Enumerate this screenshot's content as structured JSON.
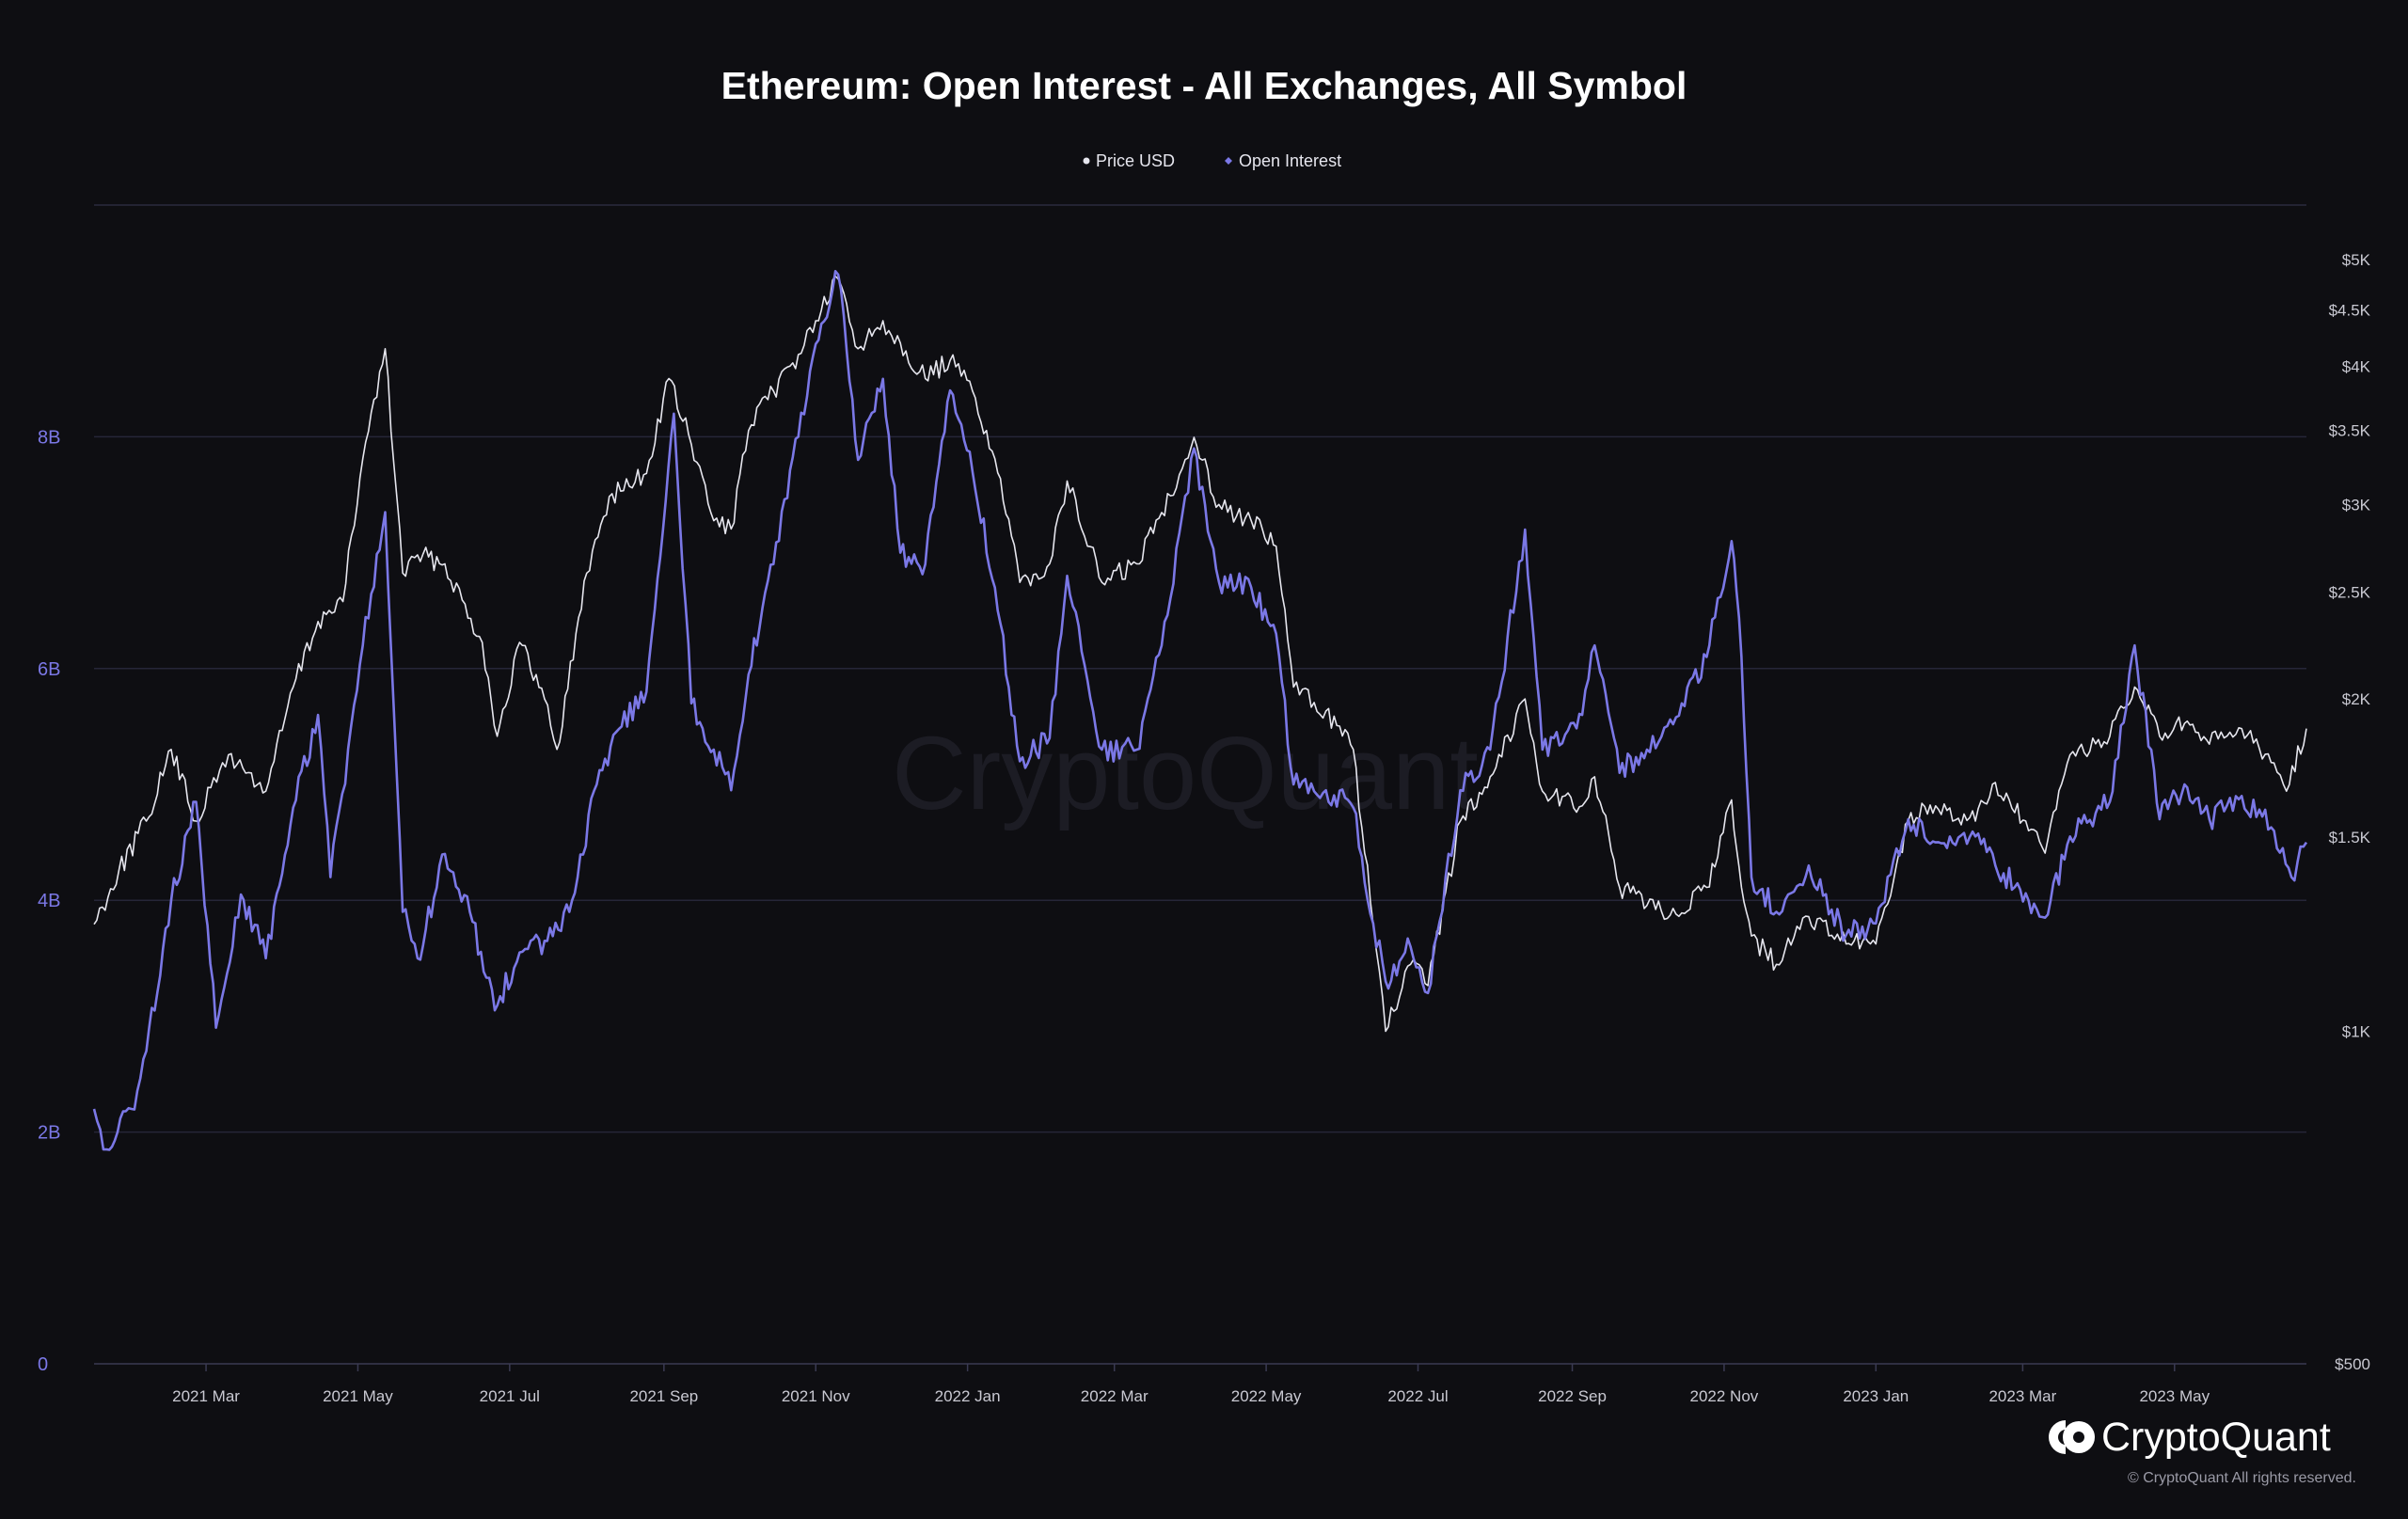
{
  "chart_data": {
    "type": "line",
    "title": "Ethereum: Open Interest - All Exchanges, All Symbol",
    "legend": [
      {
        "name": "Price USD",
        "color": "#e6e6ee"
      },
      {
        "name": "Open Interest",
        "color": "#7b78e6"
      }
    ],
    "legend_position": "top-center",
    "grid": true,
    "x_range": [
      "2021-01-15",
      "2023-06-23"
    ],
    "x_ticks": [
      "2021 Mar",
      "2021 May",
      "2021 Jul",
      "2021 Sep",
      "2021 Nov",
      "2022 Jan",
      "2022 Mar",
      "2022 May",
      "2022 Jul",
      "2022 Sep",
      "2022 Nov",
      "2023 Jan",
      "2023 Mar",
      "2023 May"
    ],
    "y_left": {
      "label": "",
      "ticks": [
        "0",
        "2B",
        "4B",
        "6B",
        "8B"
      ],
      "range": [
        0,
        10000000000
      ]
    },
    "y_right": {
      "label": "",
      "scale": "log",
      "ticks": [
        "$500",
        "$1K",
        "$1.5K",
        "$2K",
        "$2.5K",
        "$3K",
        "$3.5K",
        "$4K",
        "$4.5K",
        "$5K"
      ],
      "range": [
        500,
        5600
      ]
    },
    "series": [
      {
        "name": "Price USD",
        "axis": "right",
        "color": "#e6e6ee",
        "points": [
          [
            "2021-01-15",
            1250
          ],
          [
            "2021-01-25",
            1400
          ],
          [
            "2021-02-05",
            1550
          ],
          [
            "2021-02-15",
            1800
          ],
          [
            "2021-02-25",
            1550
          ],
          [
            "2021-03-10",
            1780
          ],
          [
            "2021-03-25",
            1650
          ],
          [
            "2021-04-05",
            2050
          ],
          [
            "2021-04-15",
            2350
          ],
          [
            "2021-04-25",
            2450
          ],
          [
            "2021-05-03",
            3300
          ],
          [
            "2021-05-12",
            4150
          ],
          [
            "2021-05-19",
            2600
          ],
          [
            "2021-05-25",
            2700
          ],
          [
            "2021-06-05",
            2650
          ],
          [
            "2021-06-20",
            2250
          ],
          [
            "2021-06-26",
            1850
          ],
          [
            "2021-07-05",
            2250
          ],
          [
            "2021-07-15",
            2000
          ],
          [
            "2021-07-20",
            1800
          ],
          [
            "2021-08-01",
            2600
          ],
          [
            "2021-08-10",
            3050
          ],
          [
            "2021-08-25",
            3200
          ],
          [
            "2021-09-03",
            3900
          ],
          [
            "2021-09-12",
            3400
          ],
          [
            "2021-09-21",
            2900
          ],
          [
            "2021-09-28",
            2850
          ],
          [
            "2021-10-05",
            3500
          ],
          [
            "2021-10-15",
            3800
          ],
          [
            "2021-10-25",
            4100
          ],
          [
            "2021-11-01",
            4400
          ],
          [
            "2021-11-10",
            4800
          ],
          [
            "2021-11-18",
            4150
          ],
          [
            "2021-11-28",
            4400
          ],
          [
            "2021-12-05",
            4200
          ],
          [
            "2021-12-15",
            3900
          ],
          [
            "2021-12-25",
            4050
          ],
          [
            "2022-01-03",
            3800
          ],
          [
            "2022-01-12",
            3300
          ],
          [
            "2022-01-22",
            2550
          ],
          [
            "2022-02-03",
            2650
          ],
          [
            "2022-02-10",
            3150
          ],
          [
            "2022-02-24",
            2550
          ],
          [
            "2022-03-10",
            2650
          ],
          [
            "2022-03-20",
            2950
          ],
          [
            "2022-04-02",
            3450
          ],
          [
            "2022-04-12",
            3000
          ],
          [
            "2022-04-25",
            2900
          ],
          [
            "2022-05-05",
            2750
          ],
          [
            "2022-05-12",
            2050
          ],
          [
            "2022-05-25",
            1950
          ],
          [
            "2022-06-05",
            1800
          ],
          [
            "2022-06-13",
            1250
          ],
          [
            "2022-06-18",
            1000
          ],
          [
            "2022-06-28",
            1150
          ],
          [
            "2022-07-05",
            1100
          ],
          [
            "2022-07-18",
            1550
          ],
          [
            "2022-07-30",
            1700
          ],
          [
            "2022-08-13",
            2000
          ],
          [
            "2022-08-20",
            1650
          ],
          [
            "2022-09-05",
            1600
          ],
          [
            "2022-09-10",
            1700
          ],
          [
            "2022-09-20",
            1350
          ],
          [
            "2022-10-01",
            1300
          ],
          [
            "2022-10-15",
            1280
          ],
          [
            "2022-10-25",
            1350
          ],
          [
            "2022-11-04",
            1620
          ],
          [
            "2022-11-08",
            1350
          ],
          [
            "2022-11-12",
            1220
          ],
          [
            "2022-11-22",
            1150
          ],
          [
            "2022-12-05",
            1270
          ],
          [
            "2022-12-20",
            1200
          ],
          [
            "2023-01-01",
            1200
          ],
          [
            "2023-01-14",
            1550
          ],
          [
            "2023-01-25",
            1600
          ],
          [
            "2023-02-10",
            1550
          ],
          [
            "2023-02-18",
            1680
          ],
          [
            "2023-03-10",
            1450
          ],
          [
            "2023-03-20",
            1780
          ],
          [
            "2023-04-05",
            1850
          ],
          [
            "2023-04-15",
            2050
          ],
          [
            "2023-04-25",
            1850
          ],
          [
            "2023-05-05",
            1900
          ],
          [
            "2023-05-15",
            1820
          ],
          [
            "2023-05-28",
            1880
          ],
          [
            "2023-06-10",
            1750
          ],
          [
            "2023-06-15",
            1650
          ],
          [
            "2023-06-23",
            1880
          ]
        ]
      },
      {
        "name": "Open Interest",
        "axis": "left",
        "color": "#7b78e6",
        "points": [
          [
            "2021-01-15",
            2200000000
          ],
          [
            "2021-01-20",
            1850000000
          ],
          [
            "2021-01-30",
            2200000000
          ],
          [
            "2021-02-05",
            2700000000
          ],
          [
            "2021-02-15",
            4000000000
          ],
          [
            "2021-02-25",
            4850000000
          ],
          [
            "2021-03-05",
            2900000000
          ],
          [
            "2021-03-15",
            4050000000
          ],
          [
            "2021-03-25",
            3500000000
          ],
          [
            "2021-04-05",
            4800000000
          ],
          [
            "2021-04-15",
            5600000000
          ],
          [
            "2021-04-20",
            4200000000
          ],
          [
            "2021-05-03",
            6200000000
          ],
          [
            "2021-05-12",
            7350000000
          ],
          [
            "2021-05-19",
            3900000000
          ],
          [
            "2021-05-25",
            3500000000
          ],
          [
            "2021-06-05",
            4400000000
          ],
          [
            "2021-06-15",
            3900000000
          ],
          [
            "2021-06-25",
            3050000000
          ],
          [
            "2021-07-05",
            3550000000
          ],
          [
            "2021-07-15",
            3650000000
          ],
          [
            "2021-07-25",
            3900000000
          ],
          [
            "2021-08-05",
            5000000000
          ],
          [
            "2021-08-15",
            5500000000
          ],
          [
            "2021-08-25",
            5800000000
          ],
          [
            "2021-09-05",
            8200000000
          ],
          [
            "2021-09-12",
            5700000000
          ],
          [
            "2021-09-21",
            5300000000
          ],
          [
            "2021-09-28",
            4950000000
          ],
          [
            "2021-10-05",
            5950000000
          ],
          [
            "2021-10-15",
            6900000000
          ],
          [
            "2021-10-25",
            8000000000
          ],
          [
            "2021-11-01",
            8800000000
          ],
          [
            "2021-11-10",
            9400000000
          ],
          [
            "2021-11-18",
            7800000000
          ],
          [
            "2021-11-28",
            8500000000
          ],
          [
            "2021-12-05",
            7000000000
          ],
          [
            "2021-12-15",
            6900000000
          ],
          [
            "2021-12-25",
            8400000000
          ],
          [
            "2022-01-03",
            7700000000
          ],
          [
            "2022-01-12",
            6700000000
          ],
          [
            "2022-01-22",
            5200000000
          ],
          [
            "2022-02-03",
            5400000000
          ],
          [
            "2022-02-10",
            6800000000
          ],
          [
            "2022-02-24",
            5300000000
          ],
          [
            "2022-03-10",
            5300000000
          ],
          [
            "2022-03-20",
            6200000000
          ],
          [
            "2022-04-02",
            7900000000
          ],
          [
            "2022-04-12",
            6750000000
          ],
          [
            "2022-04-25",
            6700000000
          ],
          [
            "2022-05-05",
            6300000000
          ],
          [
            "2022-05-12",
            5000000000
          ],
          [
            "2022-05-25",
            4950000000
          ],
          [
            "2022-06-05",
            4800000000
          ],
          [
            "2022-06-13",
            3800000000
          ],
          [
            "2022-06-18",
            3300000000
          ],
          [
            "2022-06-28",
            3600000000
          ],
          [
            "2022-07-05",
            3200000000
          ],
          [
            "2022-07-18",
            4950000000
          ],
          [
            "2022-07-30",
            5300000000
          ],
          [
            "2022-08-13",
            7200000000
          ],
          [
            "2022-08-20",
            5300000000
          ],
          [
            "2022-09-05",
            5600000000
          ],
          [
            "2022-09-10",
            6200000000
          ],
          [
            "2022-09-20",
            5100000000
          ],
          [
            "2022-10-01",
            5300000000
          ],
          [
            "2022-10-15",
            5700000000
          ],
          [
            "2022-10-25",
            6100000000
          ],
          [
            "2022-11-04",
            7100000000
          ],
          [
            "2022-11-08",
            6100000000
          ],
          [
            "2022-11-12",
            4200000000
          ],
          [
            "2022-11-22",
            3900000000
          ],
          [
            "2022-12-05",
            4300000000
          ],
          [
            "2022-12-20",
            3700000000
          ],
          [
            "2023-01-01",
            3800000000
          ],
          [
            "2023-01-14",
            4700000000
          ],
          [
            "2023-01-25",
            4500000000
          ],
          [
            "2023-02-10",
            4550000000
          ],
          [
            "2023-02-18",
            4300000000
          ],
          [
            "2023-03-10",
            3850000000
          ],
          [
            "2023-03-20",
            4550000000
          ],
          [
            "2023-04-05",
            4850000000
          ],
          [
            "2023-04-15",
            6200000000
          ],
          [
            "2023-04-25",
            4700000000
          ],
          [
            "2023-05-05",
            5000000000
          ],
          [
            "2023-05-15",
            4700000000
          ],
          [
            "2023-05-28",
            4900000000
          ],
          [
            "2023-06-10",
            4600000000
          ],
          [
            "2023-06-17",
            4200000000
          ],
          [
            "2023-06-23",
            4500000000
          ]
        ]
      }
    ]
  },
  "watermark": "CryptoQuant",
  "brand": {
    "name": "CryptoQuant",
    "copyright": "© CryptoQuant All rights reserved."
  }
}
